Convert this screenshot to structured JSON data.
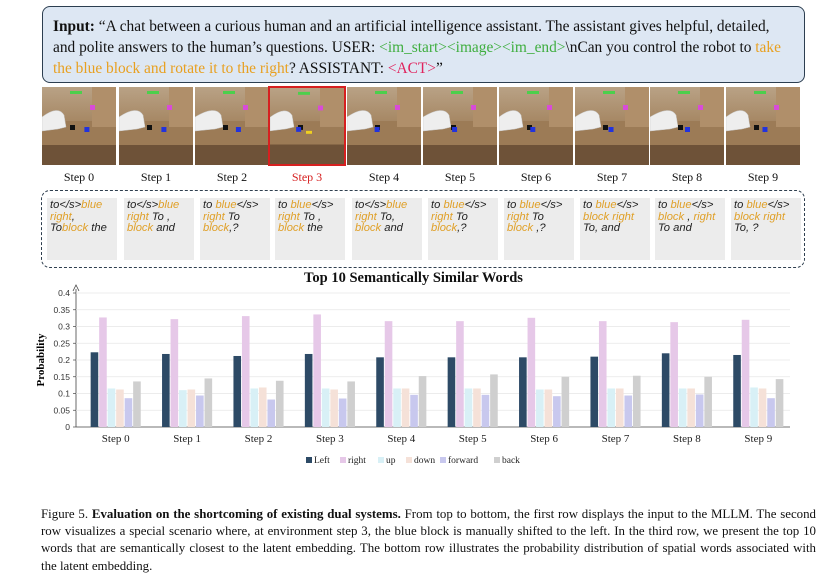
{
  "input": {
    "label": "Input:",
    "prefix": "“A chat between a curious human and an artificial intelligence assistant. The assistant gives helpful, detailed, and polite answers to the human’s questions. USER: ",
    "im_start": "<im_start>",
    "image": "<image>",
    "im_end": "<im_end>",
    "mid": "\\nCan you control the robot to ",
    "instruction": "take the blue block and rotate it to the right",
    "suffix": "? ASSISTANT: ",
    "act": "<ACT>",
    "close": "”"
  },
  "steps": [
    "Step 0",
    "Step 1",
    "Step 2",
    "Step 3",
    "Step 4",
    "Step 5",
    "Step 6",
    "Step 7",
    "Step 8",
    "Step 9"
  ],
  "highlight_step": 3,
  "frames": [
    {
      "blue": 0.6,
      "arm": 0
    },
    {
      "blue": 0.6,
      "arm": 1
    },
    {
      "blue": 0.58,
      "arm": 2
    },
    {
      "blue": 0.38,
      "arm": 3
    },
    {
      "blue": 0.4,
      "arm": 4
    },
    {
      "blue": 0.42,
      "arm": 5
    },
    {
      "blue": 0.45,
      "arm": 6
    },
    {
      "blue": 0.48,
      "arm": 7
    },
    {
      "blue": 0.5,
      "arm": 8
    },
    {
      "blue": 0.52,
      "arm": 9
    }
  ],
  "words": [
    [
      [
        "to</s>",
        0
      ],
      [
        "blue",
        1
      ],
      [
        " ",
        0
      ],
      [
        "right",
        1
      ],
      [
        ", To",
        0
      ],
      [
        "block",
        1
      ],
      [
        " the",
        0
      ]
    ],
    [
      [
        "to</s>",
        0
      ],
      [
        "blue",
        1
      ],
      [
        " ",
        0
      ],
      [
        "right",
        1
      ],
      [
        " To",
        0
      ],
      [
        " , ",
        0
      ],
      [
        "block",
        1
      ],
      [
        " and",
        0
      ]
    ],
    [
      [
        "to ",
        0
      ],
      [
        "blue",
        1
      ],
      [
        "</s> ",
        0
      ],
      [
        "right",
        1
      ],
      [
        " To ",
        0
      ],
      [
        "block",
        1
      ],
      [
        ",?",
        0
      ]
    ],
    [
      [
        "to ",
        0
      ],
      [
        "blue",
        1
      ],
      [
        "</s> ",
        0
      ],
      [
        "right",
        1
      ],
      [
        " To , ",
        0
      ],
      [
        "block",
        1
      ],
      [
        " the",
        0
      ]
    ],
    [
      [
        "to</s>",
        0
      ],
      [
        "blue",
        1
      ],
      [
        " ",
        0
      ],
      [
        "right",
        1
      ],
      [
        " To, ",
        0
      ],
      [
        "block",
        1
      ],
      [
        " and",
        0
      ]
    ],
    [
      [
        "to ",
        0
      ],
      [
        "blue",
        1
      ],
      [
        "</s> ",
        0
      ],
      [
        "right",
        1
      ],
      [
        " To ",
        0
      ],
      [
        "block",
        1
      ],
      [
        ",?",
        0
      ]
    ],
    [
      [
        "to ",
        0
      ],
      [
        "blue",
        1
      ],
      [
        "</s> ",
        0
      ],
      [
        "right",
        1
      ],
      [
        " To ",
        0
      ],
      [
        "block",
        1
      ],
      [
        " ,?",
        0
      ]
    ],
    [
      [
        "to ",
        0
      ],
      [
        "blue",
        1
      ],
      [
        "</s> ",
        0
      ],
      [
        "block",
        1
      ],
      [
        " ",
        0
      ],
      [
        "right",
        1
      ],
      [
        " To, and",
        0
      ]
    ],
    [
      [
        "to ",
        0
      ],
      [
        "blue",
        1
      ],
      [
        "</s> ",
        0
      ],
      [
        "block",
        1
      ],
      [
        " , ",
        0
      ],
      [
        "right",
        1
      ],
      [
        " To and",
        0
      ]
    ],
    [
      [
        "to ",
        0
      ],
      [
        "blue",
        1
      ],
      [
        "</s> ",
        0
      ],
      [
        "block",
        1
      ],
      [
        " ",
        0
      ],
      [
        "right",
        1
      ],
      [
        " To, ?",
        0
      ]
    ]
  ],
  "chart_data": {
    "type": "bar",
    "title": "Top 10 Semantically Similar Words",
    "ylabel": "Probability",
    "xlabel": "",
    "ylim": [
      0,
      0.4
    ],
    "yticks": [
      "0",
      "0.05",
      "0.1",
      "0.15",
      "0.2",
      "0.25",
      "0.3",
      "0.35",
      "0.4"
    ],
    "categories": [
      "Step 0",
      "Step 1",
      "Step 2",
      "Step 3",
      "Step 4",
      "Step 5",
      "Step 6",
      "Step 7",
      "Step 8",
      "Step 9"
    ],
    "legend_position": "bottom",
    "series": [
      {
        "name": "Left",
        "color": "#2d4a66",
        "values": [
          0.223,
          0.218,
          0.212,
          0.218,
          0.208,
          0.208,
          0.208,
          0.21,
          0.22,
          0.215
        ]
      },
      {
        "name": "right",
        "color": "#e6c8e8",
        "values": [
          0.327,
          0.322,
          0.331,
          0.336,
          0.316,
          0.316,
          0.326,
          0.316,
          0.313,
          0.32
        ]
      },
      {
        "name": "up",
        "color": "#d8f0f6",
        "values": [
          0.115,
          0.11,
          0.115,
          0.115,
          0.115,
          0.115,
          0.112,
          0.115,
          0.115,
          0.118
        ]
      },
      {
        "name": "down",
        "color": "#f5e1d8",
        "values": [
          0.112,
          0.112,
          0.118,
          0.112,
          0.115,
          0.115,
          0.112,
          0.115,
          0.115,
          0.115
        ]
      },
      {
        "name": "forward",
        "color": "#c8c8ee",
        "values": [
          0.086,
          0.094,
          0.082,
          0.085,
          0.096,
          0.096,
          0.092,
          0.094,
          0.097,
          0.086
        ]
      },
      {
        "name": "back",
        "color": "#cfcfcf",
        "values": [
          0.136,
          0.145,
          0.138,
          0.136,
          0.152,
          0.157,
          0.15,
          0.153,
          0.15,
          0.143
        ]
      }
    ]
  },
  "caption": {
    "label": "Figure 5.",
    "title": " Evaluation on the shortcoming of existing dual systems.",
    "body": " From top to bottom, the first row displays the input to the MLLM. The second row visualizes a special scenario where, at environment step 3, the blue block is manually shifted to the left. In the third row, we present the top 10 words that are semantically closest to the latent embedding. The bottom row illustrates the probability distribution of spatial words associated with the latent embedding."
  }
}
